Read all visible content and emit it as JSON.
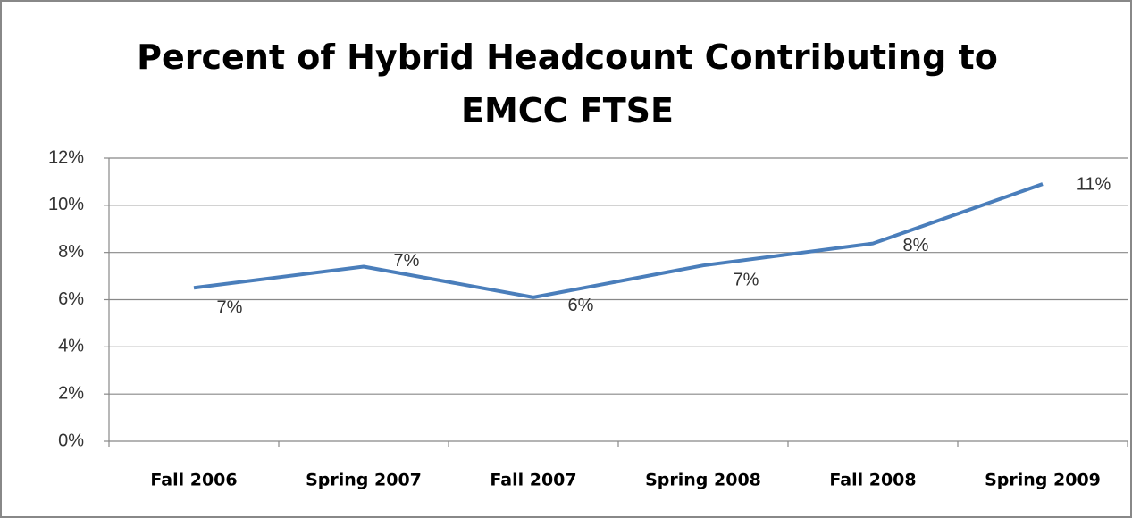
{
  "chart_data": {
    "type": "line",
    "title": "Percent of Hybrid Headcount Contributing to EMCC FTSE",
    "categories": [
      "Fall 2006",
      "Spring 2007",
      "Fall 2007",
      "Spring 2008",
      "Fall 2008",
      "Spring 2009"
    ],
    "series": [
      {
        "name": "Percent",
        "color": "#4a7ebb",
        "values": [
          6.5,
          7.4,
          6.1,
          7.45,
          8.38,
          10.9
        ],
        "value_labels": [
          "7%",
          "7%",
          "6%",
          "7%",
          "8%",
          "11%"
        ]
      }
    ],
    "ylim": [
      0,
      12
    ],
    "yticks": [
      {
        "value": 0,
        "label": "0%"
      },
      {
        "value": 2,
        "label": "2%"
      },
      {
        "value": 4,
        "label": "4%"
      },
      {
        "value": 6,
        "label": "6%"
      },
      {
        "value": 8,
        "label": "8%"
      },
      {
        "value": 10,
        "label": "10%"
      },
      {
        "value": 12,
        "label": "12%"
      }
    ],
    "grid": true
  }
}
